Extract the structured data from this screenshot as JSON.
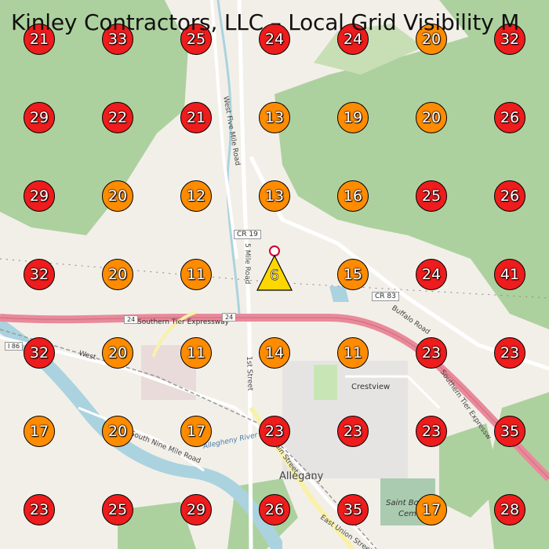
{
  "title": "Kinley Contractors, LLC – Local Grid Visibility M",
  "colors": {
    "high": "#ee1c1c",
    "medium": "#ff8c00",
    "site": "#ffd700",
    "road_primary": "#e88a9a",
    "forest": "#add19e"
  },
  "legend_rule": "red >= 21, orange <= 20",
  "grid_values": [
    [
      21,
      33,
      25,
      24,
      24,
      20,
      32
    ],
    [
      29,
      22,
      21,
      13,
      19,
      20,
      26
    ],
    [
      29,
      20,
      12,
      13,
      16,
      25,
      26
    ],
    [
      32,
      20,
      11,
      6,
      15,
      24,
      41
    ],
    [
      32,
      20,
      11,
      14,
      11,
      23,
      23
    ],
    [
      17,
      20,
      17,
      23,
      23,
      23,
      35
    ],
    [
      23,
      25,
      29,
      26,
      35,
      17,
      28
    ]
  ],
  "site_marker": {
    "value": "6",
    "icon": "triangle-warning-icon",
    "pin": "location-pin-icon"
  },
  "labels": {
    "west_five_mile_road": "West Five Mile Road",
    "five_mile_road": "5 Mile Road",
    "cr19": "CR 19",
    "cr83": "CR 83",
    "buffalo_road": "Buffalo Road",
    "southern_tier_expressway": "Southern Tier Expressway",
    "southern_tier_expressway_2": "Southern Tier Expressw",
    "i86": "I 86",
    "route24": "24",
    "route24b": "24",
    "crestview": "Crestview",
    "allegany": "Allegany",
    "south_nine_mile_road": "South Nine Mile Road",
    "allegheny_river": "Allegheny River",
    "first_street": "1st Street",
    "main_street": "Main Street",
    "east_union_street": "East Union Street",
    "west_street": "West",
    "saint_bona": "Saint Bona",
    "cem": "Cem"
  }
}
